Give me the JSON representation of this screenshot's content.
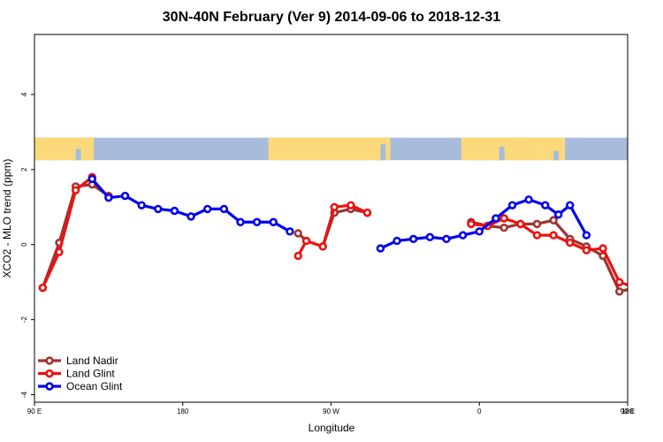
{
  "chart_data": {
    "type": "line",
    "title": "30N-40N February (Ver 9)   2014-09-06 to 2018-12-31",
    "xlabel": "Longitude",
    "ylabel": "XCO2 - MLO trend (ppm)",
    "xlim": [
      90,
      450
    ],
    "ylim": [
      -4.2,
      5.6
    ],
    "x_ticks": [
      {
        "value": 90,
        "label": "90 E"
      },
      {
        "value": 180,
        "label": "180"
      },
      {
        "value": 270,
        "label": "90 W"
      },
      {
        "value": 360,
        "label": "0"
      },
      {
        "value": 450,
        "label": "90 E"
      },
      {
        "value": 540,
        "label": "180"
      }
    ],
    "y_ticks": [
      {
        "value": -4,
        "label": "-4"
      },
      {
        "value": -2,
        "label": "-2"
      },
      {
        "value": 0,
        "label": "0"
      },
      {
        "value": 2,
        "label": "2"
      },
      {
        "value": 4,
        "label": "4"
      }
    ],
    "map_strip": {
      "y_bottom": 2.25,
      "y_top": 2.85,
      "ocean_color": "#a7bcdc",
      "land_color": "#fbd97a"
    },
    "legend_position": "bottom-left",
    "series": [
      {
        "name": "Land Nadir",
        "color": "#a0332f",
        "segments": [
          [
            [
              95,
              -1.15
            ],
            [
              105,
              0.05
            ],
            [
              115,
              1.55
            ],
            [
              125,
              1.6
            ],
            [
              135,
              1.3
            ]
          ],
          [
            [
              250,
              0.3
            ],
            [
              255,
              0.1
            ],
            [
              265,
              -0.05
            ],
            [
              272,
              0.85
            ],
            [
              282,
              0.95
            ],
            [
              292,
              0.85
            ]
          ],
          [
            [
              355,
              0.6
            ],
            [
              365,
              0.5
            ],
            [
              375,
              0.45
            ],
            [
              385,
              0.55
            ],
            [
              395,
              0.55
            ],
            [
              405,
              0.65
            ],
            [
              415,
              0.15
            ],
            [
              425,
              -0.05
            ],
            [
              435,
              -0.3
            ],
            [
              445,
              -1.25
            ],
            [
              455,
              -1.15
            ],
            [
              465,
              0.05
            ],
            [
              475,
              1.55
            ],
            [
              485,
              1.6
            ],
            [
              495,
              1.3
            ]
          ]
        ]
      },
      {
        "name": "Land Glint",
        "color": "#ee1111",
        "segments": [
          [
            [
              95,
              -1.15
            ],
            [
              105,
              -0.2
            ],
            [
              115,
              1.45
            ],
            [
              125,
              1.8
            ]
          ],
          [
            [
              250,
              -0.3
            ],
            [
              255,
              0.1
            ],
            [
              265,
              -0.05
            ],
            [
              272,
              1.0
            ],
            [
              282,
              1.05
            ],
            [
              292,
              0.85
            ]
          ],
          [
            [
              355,
              0.55
            ],
            [
              365,
              0.5
            ],
            [
              375,
              0.7
            ],
            [
              385,
              0.55
            ],
            [
              395,
              0.25
            ],
            [
              405,
              0.25
            ],
            [
              415,
              0.05
            ],
            [
              425,
              -0.15
            ],
            [
              435,
              -0.1
            ],
            [
              445,
              -1.0
            ],
            [
              455,
              -1.15
            ],
            [
              465,
              -0.2
            ],
            [
              475,
              1.45
            ],
            [
              485,
              1.8
            ]
          ]
        ]
      },
      {
        "name": "Ocean Glint",
        "color": "#0000ee",
        "segments": [
          [
            [
              125,
              1.75
            ],
            [
              135,
              1.25
            ],
            [
              145,
              1.3
            ],
            [
              155,
              1.05
            ],
            [
              165,
              0.95
            ],
            [
              175,
              0.9
            ],
            [
              185,
              0.75
            ],
            [
              195,
              0.95
            ],
            [
              205,
              0.95
            ],
            [
              215,
              0.6
            ],
            [
              225,
              0.6
            ],
            [
              235,
              0.6
            ],
            [
              245,
              0.35
            ]
          ],
          [
            [
              300,
              -0.1
            ],
            [
              310,
              0.1
            ],
            [
              320,
              0.15
            ],
            [
              330,
              0.2
            ],
            [
              340,
              0.15
            ],
            [
              350,
              0.25
            ],
            [
              360,
              0.35
            ],
            [
              370,
              0.7
            ],
            [
              380,
              1.05
            ],
            [
              390,
              1.2
            ],
            [
              400,
              1.05
            ],
            [
              408,
              0.8
            ],
            [
              415,
              1.05
            ],
            [
              425,
              0.25
            ]
          ]
        ]
      }
    ]
  },
  "extra_ocean_glint_right": [
    [
      485,
      1.75
    ],
    [
      495,
      1.25
    ],
    [
      505,
      1.3
    ],
    [
      515,
      1.05
    ],
    [
      525,
      0.95
    ],
    [
      535,
      0.9
    ]
  ]
}
